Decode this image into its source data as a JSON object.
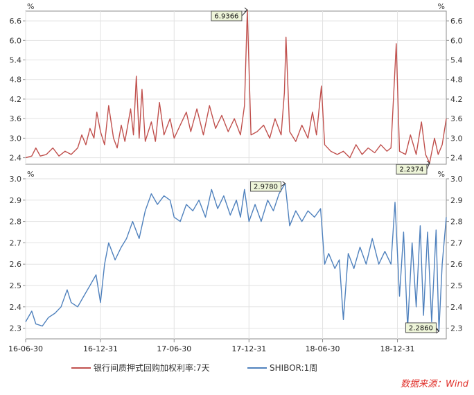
{
  "source": "数据来源：Wind",
  "legend": [
    {
      "label": "银行间质押式回购加权利率:7天",
      "color": "#c0504d"
    },
    {
      "label": "SHIBOR:1周",
      "color": "#4f81bd"
    }
  ],
  "x_ticks": [
    "16-06-30",
    "16-12-31",
    "17-06-30",
    "17-12-31",
    "18-06-30",
    "18-12-31"
  ],
  "chart_data": [
    {
      "type": "line",
      "series": [
        {
          "name": "银行间质押式回购加权利率:7天",
          "color": "#c0504d"
        }
      ],
      "x_range": [
        "2016-06-30",
        "2019-04-30"
      ],
      "ylim": [
        2.2,
        6.9
      ],
      "yticks": [
        "2.4",
        "3.0",
        "3.6",
        "4.2",
        "4.8",
        "5.4",
        "6.0",
        "6.6"
      ],
      "unit_left": "%",
      "unit_right": "%",
      "points": [
        [
          "2016-06-30",
          2.4
        ],
        [
          "2016-07-15",
          2.45
        ],
        [
          "2016-07-25",
          2.7
        ],
        [
          "2016-08-05",
          2.45
        ],
        [
          "2016-08-20",
          2.5
        ],
        [
          "2016-09-05",
          2.7
        ],
        [
          "2016-09-20",
          2.45
        ],
        [
          "2016-10-05",
          2.6
        ],
        [
          "2016-10-20",
          2.5
        ],
        [
          "2016-11-05",
          2.7
        ],
        [
          "2016-11-15",
          3.1
        ],
        [
          "2016-11-25",
          2.8
        ],
        [
          "2016-12-05",
          3.3
        ],
        [
          "2016-12-15",
          3.0
        ],
        [
          "2016-12-22",
          3.8
        ],
        [
          "2016-12-31",
          3.2
        ],
        [
          "2017-01-10",
          2.8
        ],
        [
          "2017-01-20",
          4.0
        ],
        [
          "2017-02-01",
          3.0
        ],
        [
          "2017-02-10",
          2.7
        ],
        [
          "2017-02-20",
          3.4
        ],
        [
          "2017-03-01",
          2.9
        ],
        [
          "2017-03-15",
          3.9
        ],
        [
          "2017-03-22",
          3.1
        ],
        [
          "2017-03-29",
          4.9
        ],
        [
          "2017-04-05",
          3.0
        ],
        [
          "2017-04-12",
          4.5
        ],
        [
          "2017-04-20",
          2.9
        ],
        [
          "2017-05-05",
          3.5
        ],
        [
          "2017-05-15",
          2.9
        ],
        [
          "2017-05-25",
          4.1
        ],
        [
          "2017-06-05",
          3.1
        ],
        [
          "2017-06-20",
          3.6
        ],
        [
          "2017-06-30",
          3.0
        ],
        [
          "2017-07-15",
          3.4
        ],
        [
          "2017-07-30",
          3.8
        ],
        [
          "2017-08-10",
          3.2
        ],
        [
          "2017-08-25",
          3.9
        ],
        [
          "2017-09-10",
          3.1
        ],
        [
          "2017-09-25",
          4.0
        ],
        [
          "2017-10-10",
          3.3
        ],
        [
          "2017-10-25",
          3.7
        ],
        [
          "2017-11-10",
          3.2
        ],
        [
          "2017-11-25",
          3.6
        ],
        [
          "2017-12-10",
          3.1
        ],
        [
          "2017-12-20",
          4.0
        ],
        [
          "2017-12-27",
          6.9366
        ],
        [
          "2018-01-05",
          3.1
        ],
        [
          "2018-01-20",
          3.2
        ],
        [
          "2018-02-05",
          3.4
        ],
        [
          "2018-02-20",
          3.0
        ],
        [
          "2018-03-05",
          3.6
        ],
        [
          "2018-03-20",
          3.1
        ],
        [
          "2018-03-28",
          4.4
        ],
        [
          "2018-04-01",
          6.1
        ],
        [
          "2018-04-10",
          3.2
        ],
        [
          "2018-04-25",
          2.9
        ],
        [
          "2018-05-10",
          3.4
        ],
        [
          "2018-05-25",
          3.0
        ],
        [
          "2018-06-05",
          3.8
        ],
        [
          "2018-06-15",
          3.1
        ],
        [
          "2018-06-27",
          4.6
        ],
        [
          "2018-07-05",
          2.8
        ],
        [
          "2018-07-20",
          2.6
        ],
        [
          "2018-08-05",
          2.5
        ],
        [
          "2018-08-20",
          2.6
        ],
        [
          "2018-09-05",
          2.4
        ],
        [
          "2018-09-20",
          2.8
        ],
        [
          "2018-10-05",
          2.5
        ],
        [
          "2018-10-20",
          2.7
        ],
        [
          "2018-11-05",
          2.55
        ],
        [
          "2018-11-20",
          2.8
        ],
        [
          "2018-12-05",
          2.6
        ],
        [
          "2018-12-15",
          2.7
        ],
        [
          "2018-12-28",
          5.9
        ],
        [
          "2019-01-05",
          2.6
        ],
        [
          "2019-01-20",
          2.5
        ],
        [
          "2019-02-01",
          3.1
        ],
        [
          "2019-02-15",
          2.5
        ],
        [
          "2019-02-28",
          3.5
        ],
        [
          "2019-03-10",
          2.5
        ],
        [
          "2019-03-20",
          2.2374
        ],
        [
          "2019-04-01",
          3.0
        ],
        [
          "2019-04-10",
          2.5
        ],
        [
          "2019-04-20",
          2.8
        ],
        [
          "2019-04-30",
          3.6
        ]
      ],
      "annotations": [
        {
          "date": "2017-12-27",
          "value": 6.9366,
          "label": "6.9366"
        },
        {
          "date": "2019-03-20",
          "value": 2.2374,
          "label": "2.2374"
        }
      ]
    },
    {
      "type": "line",
      "series": [
        {
          "name": "SHIBOR:1周",
          "color": "#4f81bd"
        }
      ],
      "x_range": [
        "2016-06-30",
        "2019-04-30"
      ],
      "ylim": [
        2.25,
        3.0
      ],
      "yticks": [
        "2.3",
        "2.4",
        "2.5",
        "2.6",
        "2.7",
        "2.8",
        "2.9",
        "3.0"
      ],
      "unit_left": "%",
      "unit_right": "%",
      "points": [
        [
          "2016-06-30",
          2.33
        ],
        [
          "2016-07-15",
          2.38
        ],
        [
          "2016-07-25",
          2.32
        ],
        [
          "2016-08-10",
          2.31
        ],
        [
          "2016-08-25",
          2.35
        ],
        [
          "2016-09-10",
          2.37
        ],
        [
          "2016-09-25",
          2.4
        ],
        [
          "2016-10-10",
          2.48
        ],
        [
          "2016-10-20",
          2.42
        ],
        [
          "2016-11-05",
          2.4
        ],
        [
          "2016-11-20",
          2.45
        ],
        [
          "2016-12-05",
          2.5
        ],
        [
          "2016-12-20",
          2.55
        ],
        [
          "2016-12-31",
          2.42
        ],
        [
          "2017-01-10",
          2.6
        ],
        [
          "2017-01-20",
          2.7
        ],
        [
          "2017-02-05",
          2.62
        ],
        [
          "2017-02-20",
          2.68
        ],
        [
          "2017-03-05",
          2.72
        ],
        [
          "2017-03-20",
          2.8
        ],
        [
          "2017-04-05",
          2.72
        ],
        [
          "2017-04-20",
          2.85
        ],
        [
          "2017-05-05",
          2.93
        ],
        [
          "2017-05-20",
          2.88
        ],
        [
          "2017-06-05",
          2.92
        ],
        [
          "2017-06-20",
          2.9
        ],
        [
          "2017-06-30",
          2.82
        ],
        [
          "2017-07-15",
          2.8
        ],
        [
          "2017-07-30",
          2.88
        ],
        [
          "2017-08-15",
          2.85
        ],
        [
          "2017-08-30",
          2.9
        ],
        [
          "2017-09-15",
          2.82
        ],
        [
          "2017-09-30",
          2.95
        ],
        [
          "2017-10-15",
          2.86
        ],
        [
          "2017-10-30",
          2.92
        ],
        [
          "2017-11-15",
          2.83
        ],
        [
          "2017-11-30",
          2.9
        ],
        [
          "2017-12-10",
          2.82
        ],
        [
          "2017-12-20",
          2.95
        ],
        [
          "2017-12-31",
          2.8
        ],
        [
          "2018-01-15",
          2.88
        ],
        [
          "2018-01-30",
          2.8
        ],
        [
          "2018-02-15",
          2.9
        ],
        [
          "2018-03-01",
          2.85
        ],
        [
          "2018-03-15",
          2.93
        ],
        [
          "2018-03-30",
          2.978
        ],
        [
          "2018-04-10",
          2.78
        ],
        [
          "2018-04-25",
          2.85
        ],
        [
          "2018-05-10",
          2.8
        ],
        [
          "2018-05-25",
          2.85
        ],
        [
          "2018-06-10",
          2.82
        ],
        [
          "2018-06-25",
          2.86
        ],
        [
          "2018-07-05",
          2.6
        ],
        [
          "2018-07-15",
          2.65
        ],
        [
          "2018-07-30",
          2.58
        ],
        [
          "2018-08-10",
          2.62
        ],
        [
          "2018-08-20",
          2.34
        ],
        [
          "2018-09-01",
          2.65
        ],
        [
          "2018-09-15",
          2.58
        ],
        [
          "2018-09-30",
          2.68
        ],
        [
          "2018-10-15",
          2.6
        ],
        [
          "2018-10-30",
          2.72
        ],
        [
          "2018-11-15",
          2.6
        ],
        [
          "2018-11-30",
          2.66
        ],
        [
          "2018-12-15",
          2.6
        ],
        [
          "2018-12-25",
          2.89
        ],
        [
          "2019-01-05",
          2.45
        ],
        [
          "2019-01-15",
          2.75
        ],
        [
          "2019-01-25",
          2.3
        ],
        [
          "2019-02-05",
          2.7
        ],
        [
          "2019-02-15",
          2.4
        ],
        [
          "2019-02-25",
          2.78
        ],
        [
          "2019-03-05",
          2.36
        ],
        [
          "2019-03-15",
          2.75
        ],
        [
          "2019-03-25",
          2.33
        ],
        [
          "2019-04-05",
          2.76
        ],
        [
          "2019-04-12",
          2.286
        ],
        [
          "2019-04-20",
          2.6
        ],
        [
          "2019-04-30",
          2.82
        ]
      ],
      "annotations": [
        {
          "date": "2018-03-30",
          "value": 2.978,
          "label": "2.9780"
        },
        {
          "date": "2019-04-12",
          "value": 2.286,
          "label": "2.2860"
        }
      ]
    }
  ]
}
